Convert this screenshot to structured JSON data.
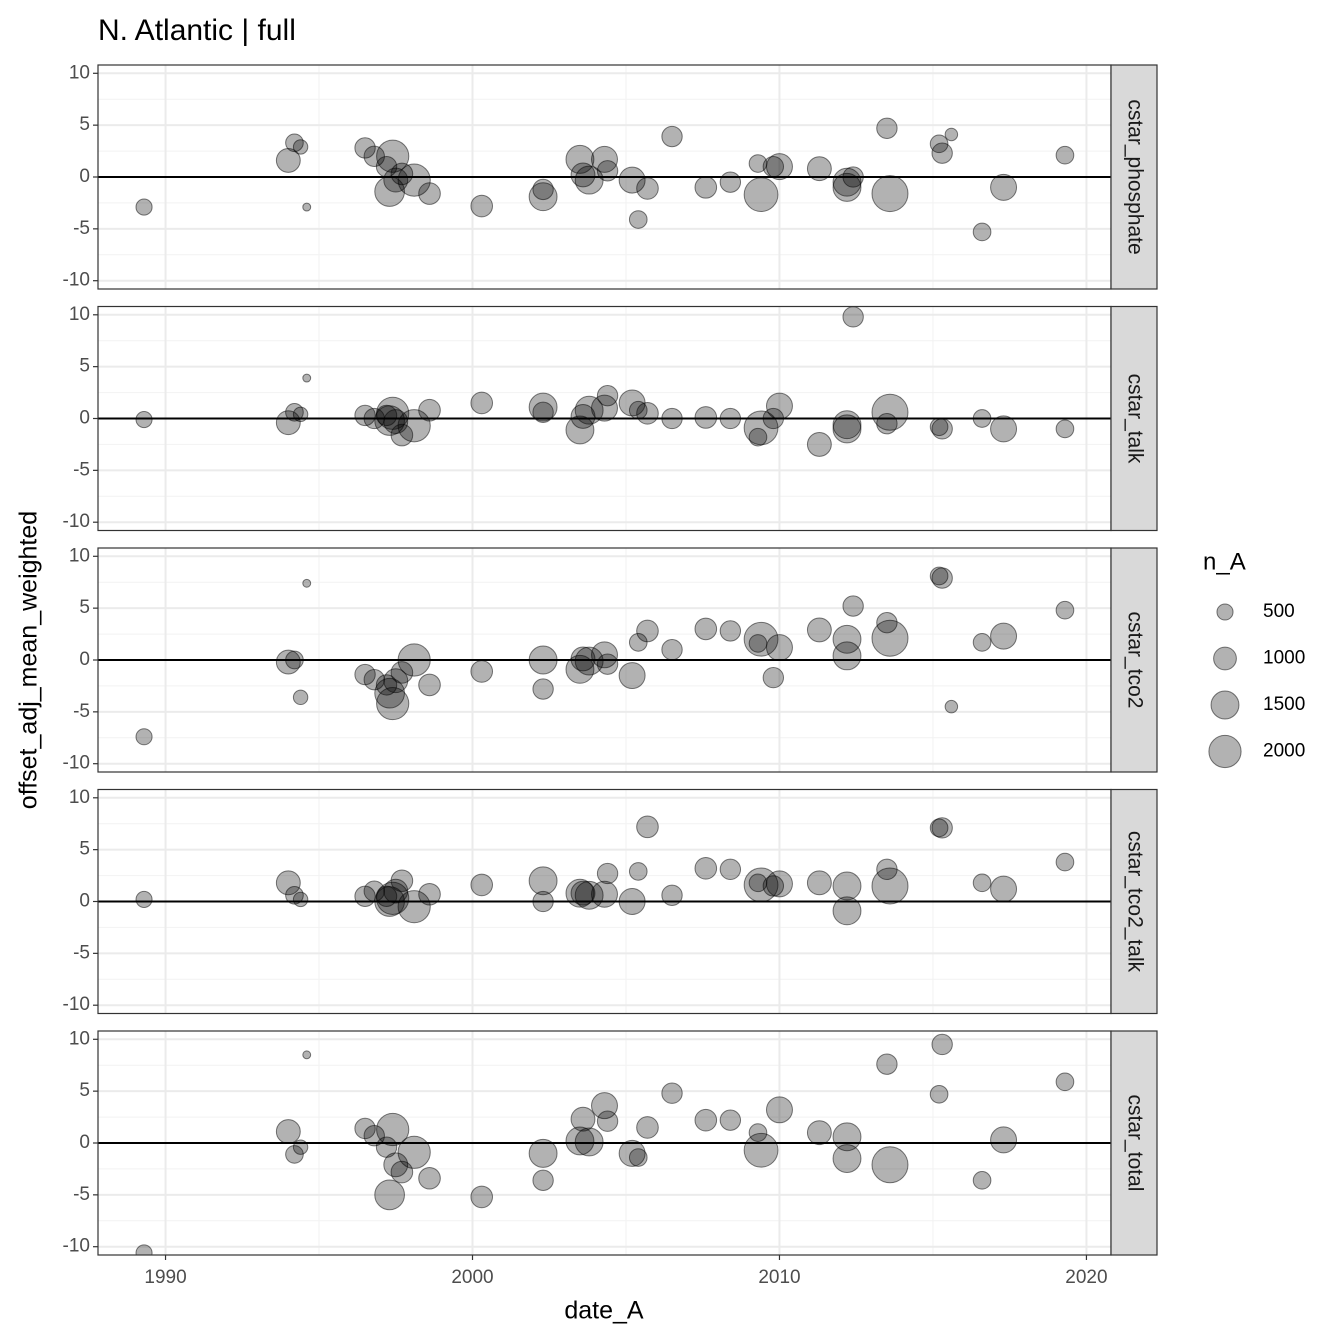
{
  "chart_data": {
    "type": "scatter",
    "title": "N. Atlantic | full",
    "x_label": "date_A",
    "y_label": "offset_adj_mean_weighted",
    "size_label": "n_A",
    "size_legend": [
      500,
      1000,
      1500,
      2000
    ],
    "color": "#000000",
    "opacity": 0.3,
    "hline": 0,
    "grid": true,
    "xlim": [
      1987.8,
      2020.8
    ],
    "xticks": [
      1990,
      2000,
      2010,
      2020
    ],
    "ylim": [
      -10.8,
      10.8
    ],
    "yticks": [
      -10,
      -5,
      0,
      5,
      10
    ],
    "x": [
      1989.3,
      1994.0,
      1994.2,
      1994.4,
      1994.6,
      1996.5,
      1996.8,
      1997.2,
      1997.4,
      1997.3,
      1997.5,
      1997.7,
      1998.1,
      1998.6,
      2000.3,
      2002.3,
      2002.3,
      2003.5,
      2003.6,
      2003.8,
      2004.3,
      2004.4,
      2005.2,
      2005.4,
      2005.7,
      2006.5,
      2007.6,
      2008.4,
      2009.3,
      2009.4,
      2009.8,
      2010.0,
      2011.3,
      2012.2,
      2012.2,
      2012.4,
      2013.5,
      2013.6,
      2015.2,
      2015.3,
      2015.6,
      2016.6,
      2017.3,
      2019.3
    ],
    "sizes": [
      500,
      1100,
      600,
      400,
      120,
      800,
      800,
      800,
      2000,
      1700,
      1100,
      900,
      2000,
      900,
      900,
      800,
      1500,
      1500,
      1100,
      1500,
      1300,
      800,
      1300,
      600,
      900,
      800,
      900,
      800,
      600,
      2200,
      800,
      1300,
      1100,
      1500,
      1500,
      800,
      800,
      2500,
      600,
      800,
      300,
      600,
      1300,
      600
    ],
    "series": [
      {
        "name": "cstar_phosphate",
        "values": [
          -2.9,
          1.6,
          3.3,
          2.9,
          -2.9,
          2.8,
          2.0,
          1.0,
          2.0,
          -1.4,
          -0.3,
          0.3,
          -0.3,
          -1.6,
          -2.8,
          -1.2,
          -1.9,
          1.7,
          0.2,
          -0.3,
          1.7,
          0.6,
          -0.3,
          -4.1,
          -1.1,
          3.9,
          -1.0,
          -0.5,
          1.3,
          -1.7,
          1.0,
          1.0,
          0.8,
          -0.5,
          -1.0,
          0.0,
          4.7,
          -1.6,
          3.2,
          2.3,
          4.1,
          -5.3,
          -1.0,
          2.1
        ]
      },
      {
        "name": "cstar_talk",
        "values": [
          -0.1,
          -0.4,
          0.6,
          0.4,
          3.9,
          0.3,
          0.0,
          0.3,
          0.5,
          -0.2,
          -0.3,
          -1.6,
          -0.7,
          0.8,
          1.5,
          0.6,
          1.1,
          -1.1,
          0.2,
          0.8,
          1.0,
          2.2,
          1.5,
          0.8,
          0.5,
          0.0,
          0.1,
          0.0,
          -1.8,
          -0.9,
          0.0,
          1.2,
          -2.5,
          -0.6,
          -1.0,
          9.8,
          -0.5,
          0.6,
          -0.8,
          -1.0,
          null,
          0.0,
          -1.0,
          -1.0
        ]
      },
      {
        "name": "cstar_tco2",
        "values": [
          -7.4,
          -0.2,
          0.0,
          -3.6,
          7.4,
          -1.4,
          -1.9,
          -2.4,
          -4.2,
          -3.2,
          -2.0,
          -1.2,
          0.0,
          -2.4,
          -1.1,
          -2.8,
          0.0,
          -0.9,
          0.1,
          -0.1,
          0.5,
          -0.4,
          -1.5,
          1.7,
          2.8,
          1.0,
          3.0,
          2.8,
          1.6,
          2.0,
          -1.7,
          1.2,
          2.9,
          2.0,
          0.4,
          5.2,
          3.6,
          2.1,
          8.1,
          7.9,
          -4.5,
          1.7,
          2.3,
          4.8
        ]
      },
      {
        "name": "cstar_tco2_talk",
        "values": [
          0.2,
          1.8,
          0.6,
          0.2,
          null,
          0.5,
          1.0,
          0.5,
          0.3,
          0.0,
          1.0,
          2.0,
          -0.5,
          0.7,
          1.6,
          0.0,
          2.0,
          0.8,
          0.8,
          0.6,
          0.7,
          2.7,
          0.0,
          2.9,
          7.2,
          0.6,
          3.2,
          3.1,
          1.8,
          1.6,
          1.5,
          1.7,
          1.8,
          1.5,
          -0.9,
          null,
          3.1,
          1.5,
          7.1,
          7.1,
          null,
          1.8,
          1.2,
          3.8
        ]
      },
      {
        "name": "cstar_total",
        "values": [
          -10.6,
          1.1,
          -1.1,
          -0.4,
          8.5,
          1.4,
          0.7,
          -0.4,
          1.3,
          -5.0,
          -2.1,
          -2.8,
          -0.9,
          -3.4,
          -5.2,
          -3.6,
          -1.0,
          0.2,
          2.3,
          0.1,
          3.6,
          2.1,
          -1.0,
          -1.4,
          1.5,
          4.8,
          2.2,
          2.2,
          1.0,
          -0.7,
          null,
          3.2,
          1.0,
          0.6,
          -1.5,
          null,
          7.6,
          -2.1,
          4.7,
          9.5,
          null,
          -3.6,
          0.3,
          5.9
        ]
      }
    ]
  }
}
